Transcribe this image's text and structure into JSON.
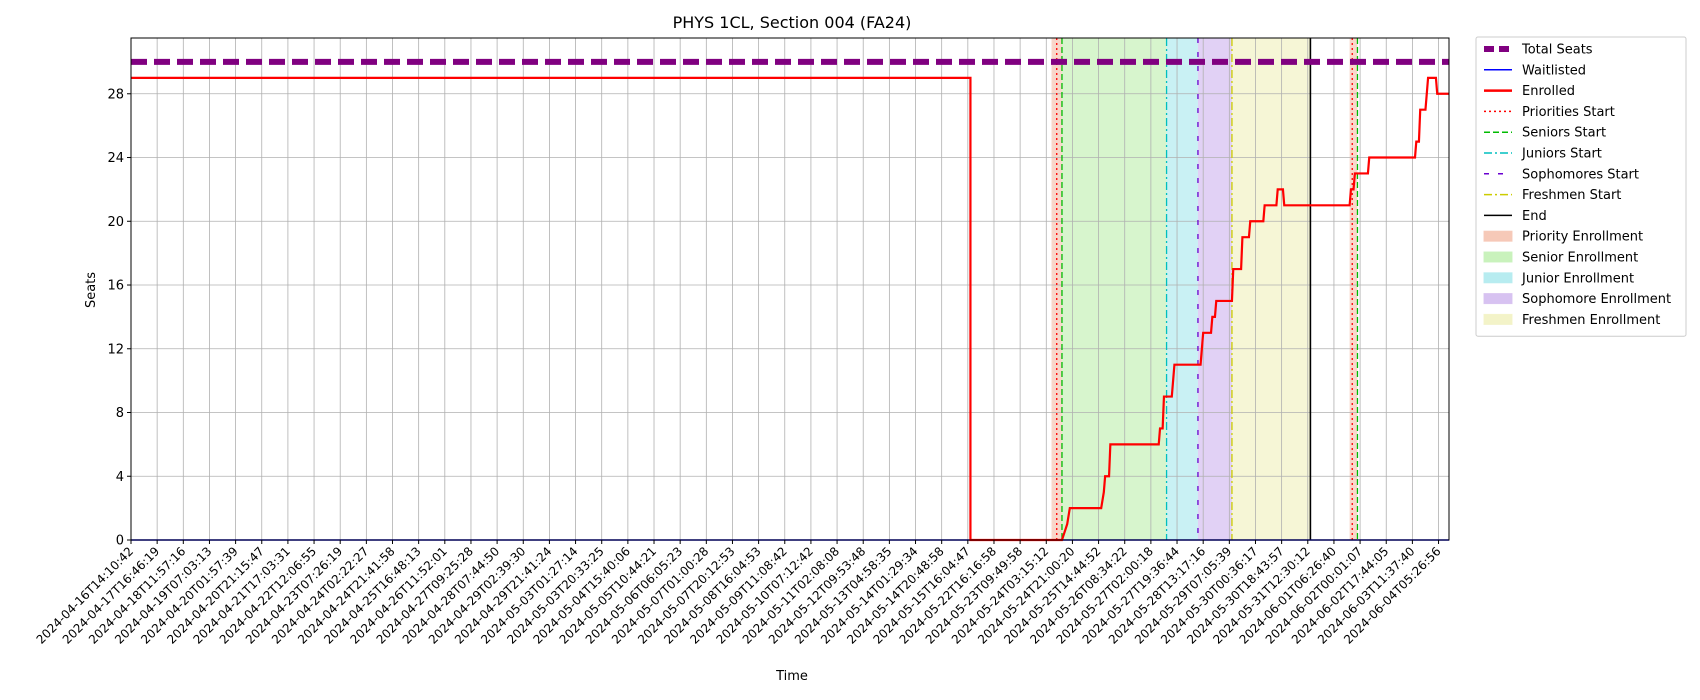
{
  "chart_data": {
    "type": "line",
    "title": "PHYS 1CL, Section 004 (FA24)",
    "xlabel": "Time",
    "ylabel": "Seats",
    "ylim": [
      0,
      31.5
    ],
    "yticks": [
      0,
      4,
      8,
      12,
      16,
      20,
      24,
      28
    ],
    "grid": true,
    "legend_position": "outside-top-right",
    "x_tick_labels": [
      "2024-04-16T14:10:42",
      "2024-04-17T16:46:19",
      "2024-04-18T11:57:16",
      "2024-04-19T07:03:13",
      "2024-04-20T01:57:39",
      "2024-04-20T21:15:47",
      "2024-04-21T17:03:31",
      "2024-04-22T12:06:55",
      "2024-04-23T07:26:19",
      "2024-04-24T02:22:27",
      "2024-04-24T21:41:58",
      "2024-04-25T16:48:13",
      "2024-04-26T11:52:01",
      "2024-04-27T09:25:28",
      "2024-04-28T07:44:50",
      "2024-04-29T02:39:30",
      "2024-04-29T21:41:24",
      "2024-05-03T01:27:14",
      "2024-05-03T20:33:25",
      "2024-05-04T15:40:06",
      "2024-05-05T10:44:21",
      "2024-05-06T06:05:23",
      "2024-05-07T01:00:28",
      "2024-05-07T20:12:53",
      "2024-05-08T16:04:53",
      "2024-05-09T11:08:42",
      "2024-05-10T07:12:42",
      "2024-05-11T02:08:08",
      "2024-05-12T09:53:48",
      "2024-05-13T04:58:35",
      "2024-05-14T01:29:34",
      "2024-05-14T20:48:58",
      "2024-05-15T16:04:47",
      "2024-05-22T16:16:58",
      "2024-05-23T09:49:58",
      "2024-05-24T03:15:12",
      "2024-05-24T21:00:20",
      "2024-05-25T14:44:52",
      "2024-05-26T08:34:22",
      "2024-05-27T02:00:18",
      "2024-05-27T19:36:44",
      "2024-05-28T13:17:16",
      "2024-05-29T07:05:39",
      "2024-05-30T00:36:17",
      "2024-05-30T18:43:57",
      "2024-05-31T12:30:12",
      "2024-06-01T06:26:40",
      "2024-06-02T00:01:07",
      "2024-06-02T17:44:05",
      "2024-06-03T11:37:40",
      "2024-06-04T05:26:56"
    ],
    "x_range": [
      0,
      50.4
    ],
    "series": [
      {
        "name": "Total Seats",
        "color": "#800080",
        "style": "dashed-thick",
        "points": [
          [
            0,
            30
          ],
          [
            50.4,
            30
          ]
        ]
      },
      {
        "name": "Waitlisted",
        "color": "#0000ff",
        "style": "solid",
        "points": [
          [
            0,
            0
          ],
          [
            50.4,
            0
          ]
        ]
      },
      {
        "name": "Enrolled",
        "color": "#ff0000",
        "style": "steps",
        "points": [
          [
            0,
            29
          ],
          [
            32.1,
            29
          ],
          [
            32.1,
            0
          ],
          [
            35.6,
            0
          ],
          [
            35.8,
            1
          ],
          [
            35.9,
            2
          ],
          [
            37.1,
            2
          ],
          [
            37.2,
            3
          ],
          [
            37.25,
            4
          ],
          [
            37.4,
            4
          ],
          [
            37.45,
            6
          ],
          [
            39.3,
            6
          ],
          [
            39.35,
            7
          ],
          [
            39.45,
            7
          ],
          [
            39.5,
            9
          ],
          [
            39.8,
            9
          ],
          [
            39.85,
            10
          ],
          [
            39.9,
            11
          ],
          [
            40.9,
            11
          ],
          [
            41.0,
            13
          ],
          [
            41.3,
            13
          ],
          [
            41.35,
            14
          ],
          [
            41.45,
            14
          ],
          [
            41.5,
            15
          ],
          [
            42.1,
            15
          ],
          [
            42.15,
            17
          ],
          [
            42.45,
            17
          ],
          [
            42.5,
            19
          ],
          [
            42.75,
            19
          ],
          [
            42.8,
            20
          ],
          [
            43.3,
            20
          ],
          [
            43.35,
            21
          ],
          [
            43.8,
            21
          ],
          [
            43.85,
            22
          ],
          [
            44.05,
            22
          ],
          [
            44.1,
            21
          ],
          [
            46.6,
            21
          ],
          [
            46.65,
            22
          ],
          [
            46.75,
            22
          ],
          [
            46.8,
            23
          ],
          [
            47.3,
            23
          ],
          [
            47.35,
            24
          ],
          [
            49.1,
            24
          ],
          [
            49.15,
            25
          ],
          [
            49.25,
            25
          ],
          [
            49.3,
            27
          ],
          [
            49.5,
            27
          ],
          [
            49.55,
            28
          ],
          [
            49.6,
            29
          ],
          [
            49.9,
            29
          ],
          [
            49.95,
            28
          ],
          [
            50.4,
            28
          ]
        ]
      }
    ],
    "vlines": [
      {
        "name": "Priorities Start",
        "x": 35.4,
        "color": "#ff0000",
        "style": "dotted"
      },
      {
        "name": "Priorities Start",
        "x": 46.7,
        "color": "#ff0000",
        "style": "dotted"
      },
      {
        "name": "Seniors Start",
        "x": 35.6,
        "color": "#00bb00",
        "style": "dashed"
      },
      {
        "name": "Seniors Start",
        "x": 46.9,
        "color": "#00bb00",
        "style": "dashed"
      },
      {
        "name": "Juniors Start",
        "x": 39.6,
        "color": "#00bfbf",
        "style": "dashdot"
      },
      {
        "name": "Sophomores Start",
        "x": 40.8,
        "color": "#6a00d0",
        "style": "loosedash"
      },
      {
        "name": "Freshmen Start",
        "x": 42.1,
        "color": "#cccc00",
        "style": "dashdot"
      },
      {
        "name": "End",
        "x": 45.1,
        "color": "#000000",
        "style": "solid"
      }
    ],
    "spans": [
      {
        "name": "Priority Enrollment",
        "x0": 35.2,
        "x1": 35.6,
        "color": "#f6c9b8"
      },
      {
        "name": "Priority Enrollment",
        "x0": 46.6,
        "x1": 46.9,
        "color": "#f6c9b8"
      },
      {
        "name": "Senior Enrollment",
        "x0": 35.6,
        "x1": 39.6,
        "color": "#c9f2bc"
      },
      {
        "name": "Junior Enrollment",
        "x0": 39.6,
        "x1": 40.8,
        "color": "#b7ecf0"
      },
      {
        "name": "Sophomore Enrollment",
        "x0": 40.8,
        "x1": 42.1,
        "color": "#d7c2f1"
      },
      {
        "name": "Freshmen Enrollment",
        "x0": 42.1,
        "x1": 45.1,
        "color": "#f3f3c8"
      }
    ],
    "legend": [
      {
        "label": "Total Seats",
        "kind": "line",
        "color": "#800080",
        "style": "dashed-thick"
      },
      {
        "label": "Waitlisted",
        "kind": "line",
        "color": "#0000ff",
        "style": "solid"
      },
      {
        "label": "Enrolled",
        "kind": "line",
        "color": "#ff0000",
        "style": "solid-thick"
      },
      {
        "label": "Priorities Start",
        "kind": "line",
        "color": "#ff0000",
        "style": "dotted"
      },
      {
        "label": "Seniors Start",
        "kind": "line",
        "color": "#00bb00",
        "style": "dashed"
      },
      {
        "label": "Juniors Start",
        "kind": "line",
        "color": "#00bfbf",
        "style": "dashdot"
      },
      {
        "label": "Sophomores Start",
        "kind": "line",
        "color": "#6a00d0",
        "style": "loosedash"
      },
      {
        "label": "Freshmen Start",
        "kind": "line",
        "color": "#cccc00",
        "style": "dashdot"
      },
      {
        "label": "End",
        "kind": "line",
        "color": "#000000",
        "style": "solid"
      },
      {
        "label": "Priority Enrollment",
        "kind": "patch",
        "color": "#f6c9b8"
      },
      {
        "label": "Senior Enrollment",
        "kind": "patch",
        "color": "#c9f2bc"
      },
      {
        "label": "Junior Enrollment",
        "kind": "patch",
        "color": "#b7ecf0"
      },
      {
        "label": "Sophomore Enrollment",
        "kind": "patch",
        "color": "#d7c2f1"
      },
      {
        "label": "Freshmen Enrollment",
        "kind": "patch",
        "color": "#f3f3c8"
      }
    ]
  }
}
